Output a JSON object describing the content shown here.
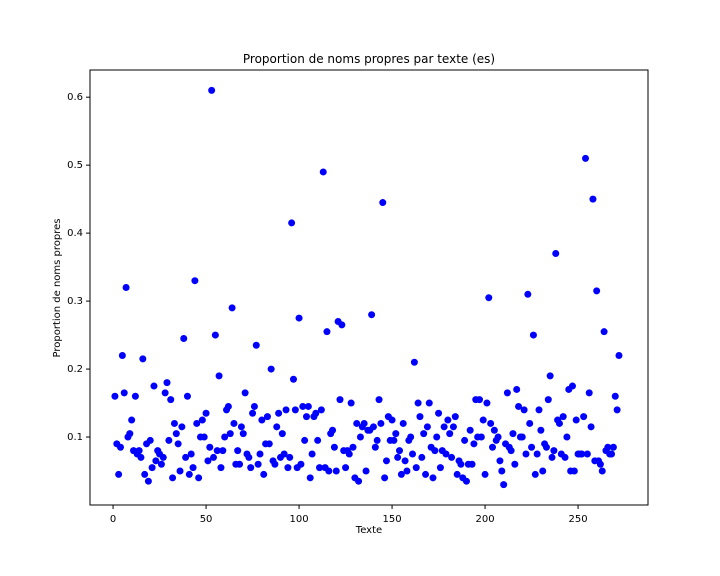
{
  "chart_data": {
    "type": "scatter",
    "title": "Proportion de noms propres par texte (es)",
    "x_label": "Texte",
    "y_label": "Proportion de noms propres",
    "color": "blue",
    "x": [
      1,
      2,
      3,
      4,
      5,
      6,
      7,
      8,
      9,
      10,
      11,
      12,
      13,
      14,
      15,
      16,
      17,
      18,
      19,
      20,
      21,
      22,
      23,
      24,
      25,
      26,
      27,
      28,
      29,
      30,
      31,
      32,
      33,
      34,
      35,
      36,
      37,
      38,
      39,
      40,
      41,
      42,
      43,
      44,
      45,
      46,
      47,
      48,
      49,
      50,
      51,
      52,
      53,
      54,
      55,
      56,
      57,
      58,
      59,
      60,
      61,
      62,
      63,
      64,
      65,
      66,
      67,
      68,
      69,
      70,
      71,
      72,
      73,
      74,
      75,
      76,
      77,
      78,
      79,
      80,
      81,
      82,
      83,
      84,
      85,
      86,
      87,
      88,
      89,
      90,
      91,
      92,
      93,
      94,
      95,
      96,
      97,
      98,
      99,
      100,
      101,
      102,
      103,
      104,
      105,
      106,
      107,
      108,
      109,
      110,
      111,
      112,
      113,
      114,
      115,
      116,
      117,
      118,
      119,
      120,
      121,
      122,
      123,
      124,
      125,
      126,
      127,
      128,
      129,
      130,
      131,
      132,
      133,
      134,
      135,
      136,
      137,
      138,
      139,
      140,
      141,
      142,
      143,
      144,
      145,
      146,
      147,
      148,
      149,
      150,
      151,
      152,
      153,
      154,
      155,
      156,
      157,
      158,
      159,
      160,
      161,
      162,
      163,
      164,
      165,
      166,
      167,
      168,
      169,
      170,
      171,
      172,
      173,
      174,
      175,
      176,
      177,
      178,
      179,
      180,
      181,
      182,
      183,
      184,
      185,
      186,
      187,
      188,
      189,
      190,
      191,
      192,
      193,
      194,
      195,
      196,
      197,
      198,
      199,
      200,
      201,
      202,
      203,
      204,
      205,
      206,
      207,
      208,
      209,
      210,
      211,
      212,
      213,
      214,
      215,
      216,
      217,
      218,
      219,
      220,
      221,
      222,
      223,
      224,
      225,
      226,
      227,
      228,
      229,
      230,
      231,
      232,
      233,
      234,
      235,
      236,
      237,
      238,
      239,
      240,
      241,
      242,
      243,
      244,
      245,
      246,
      247,
      248,
      249,
      250,
      251,
      252,
      253,
      254,
      255,
      256,
      257,
      258,
      259,
      260,
      261,
      262,
      263,
      264,
      265,
      266,
      267,
      268,
      269,
      270,
      271,
      272
    ],
    "values": [
      0.16,
      0.09,
      0.045,
      0.085,
      0.22,
      0.165,
      0.32,
      0.1,
      0.105,
      0.125,
      0.08,
      0.16,
      0.075,
      0.08,
      0.07,
      0.215,
      0.045,
      0.09,
      0.035,
      0.095,
      0.055,
      0.175,
      0.065,
      0.08,
      0.075,
      0.06,
      0.07,
      0.165,
      0.18,
      0.095,
      0.155,
      0.04,
      0.12,
      0.105,
      0.09,
      0.05,
      0.115,
      0.245,
      0.07,
      0.16,
      0.045,
      0.075,
      0.055,
      0.33,
      0.12,
      0.04,
      0.1,
      0.125,
      0.1,
      0.135,
      0.065,
      0.085,
      0.61,
      0.07,
      0.25,
      0.08,
      0.19,
      0.055,
      0.08,
      0.1,
      0.14,
      0.145,
      0.105,
      0.29,
      0.12,
      0.06,
      0.08,
      0.06,
      0.115,
      0.105,
      0.165,
      0.075,
      0.07,
      0.055,
      0.135,
      0.145,
      0.235,
      0.06,
      0.075,
      0.125,
      0.045,
      0.09,
      0.13,
      0.09,
      0.2,
      0.065,
      0.06,
      0.115,
      0.135,
      0.07,
      0.105,
      0.075,
      0.14,
      0.055,
      0.07,
      0.415,
      0.185,
      0.14,
      0.055,
      0.275,
      0.06,
      0.145,
      0.095,
      0.13,
      0.145,
      0.04,
      0.075,
      0.13,
      0.135,
      0.095,
      0.055,
      0.14,
      0.49,
      0.055,
      0.255,
      0.05,
      0.105,
      0.11,
      0.085,
      0.05,
      0.27,
      0.155,
      0.265,
      0.08,
      0.055,
      0.08,
      0.075,
      0.15,
      0.085,
      0.04,
      0.12,
      0.035,
      0.1,
      0.115,
      0.12,
      0.05,
      0.11,
      0.11,
      0.28,
      0.115,
      0.085,
      0.095,
      0.155,
      0.12,
      0.445,
      0.04,
      0.065,
      0.13,
      0.095,
      0.125,
      0.095,
      0.105,
      0.07,
      0.08,
      0.045,
      0.12,
      0.065,
      0.05,
      0.095,
      0.1,
      0.075,
      0.21,
      0.055,
      0.15,
      0.13,
      0.07,
      0.105,
      0.045,
      0.115,
      0.15,
      0.085,
      0.04,
      0.08,
      0.1,
      0.135,
      0.055,
      0.08,
      0.115,
      0.075,
      0.125,
      0.105,
      0.07,
      0.115,
      0.13,
      0.045,
      0.065,
      0.06,
      0.04,
      0.095,
      0.035,
      0.06,
      0.11,
      0.06,
      0.09,
      0.155,
      0.1,
      0.155,
      0.1,
      0.125,
      0.045,
      0.15,
      0.305,
      0.12,
      0.085,
      0.11,
      0.095,
      0.1,
      0.065,
      0.05,
      0.03,
      0.09,
      0.165,
      0.085,
      0.08,
      0.105,
      0.06,
      0.17,
      0.145,
      0.1,
      0.1,
      0.14,
      0.075,
      0.31,
      0.12,
      0.085,
      0.25,
      0.045,
      0.075,
      0.14,
      0.11,
      0.05,
      0.09,
      0.085,
      0.155,
      0.19,
      0.07,
      0.08,
      0.37,
      0.125,
      0.12,
      0.075,
      0.13,
      0.07,
      0.1,
      0.17,
      0.05,
      0.175,
      0.05,
      0.125,
      0.075,
      0.075,
      0.075,
      0.13,
      0.51,
      0.075,
      0.165,
      0.115,
      0.45,
      0.065,
      0.315,
      0.065,
      0.06,
      0.05,
      0.255,
      0.08,
      0.085,
      0.075,
      0.075,
      0.085,
      0.16,
      0.14,
      0.22
    ],
    "xlim": [
      -12.4,
      287.6
    ],
    "ylim": [
      0.0,
      0.64
    ],
    "xticks": [
      0,
      50,
      100,
      150,
      200,
      250
    ],
    "yticks": [
      0.1,
      0.2,
      0.3,
      0.4,
      0.5,
      0.6
    ]
  }
}
